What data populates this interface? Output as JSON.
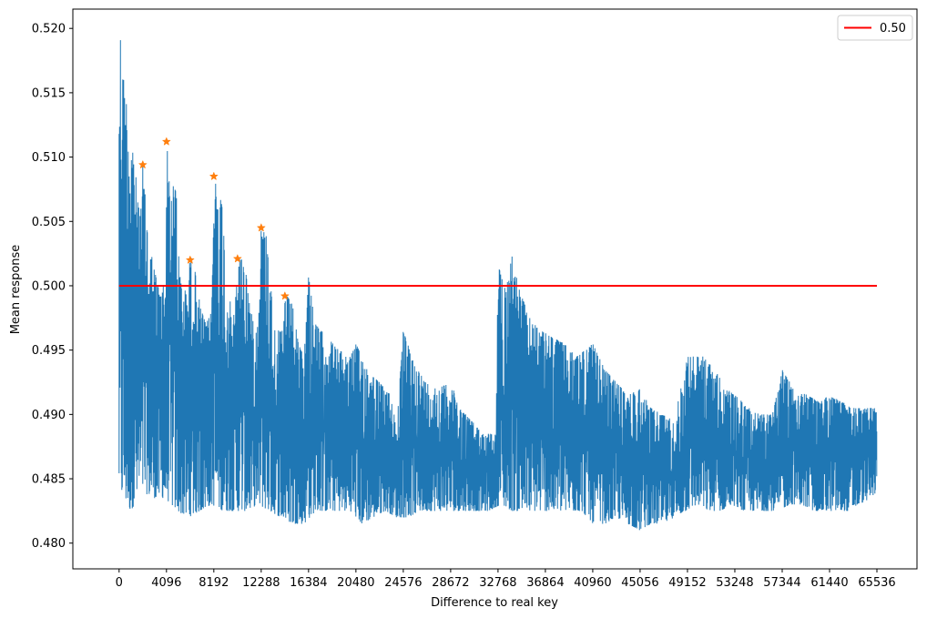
{
  "chart_data": {
    "type": "line",
    "xlabel": "Difference to real key",
    "ylabel": "Mean response",
    "xlim": [
      -4000,
      69000
    ],
    "ylim": [
      0.478,
      0.5215
    ],
    "x_ticks": [
      0,
      4096,
      8192,
      12288,
      16384,
      20480,
      24576,
      28672,
      32768,
      36864,
      40960,
      45056,
      49152,
      53248,
      57344,
      61440,
      65536
    ],
    "y_ticks": [
      0.48,
      0.485,
      0.49,
      0.495,
      0.5,
      0.505,
      0.51,
      0.515,
      0.52
    ],
    "grid": false,
    "legend_position": "top-right",
    "series": [
      {
        "name": "",
        "style": "noisy-line",
        "color": "#1f77b4",
        "envelope_upper": [
          [
            0,
            0.5195
          ],
          [
            120,
            0.5195
          ],
          [
            250,
            0.517
          ],
          [
            500,
            0.5155
          ],
          [
            800,
            0.513
          ],
          [
            1200,
            0.511
          ],
          [
            1700,
            0.506
          ],
          [
            2000,
            0.5065
          ],
          [
            2048,
            0.5095
          ],
          [
            2500,
            0.504
          ],
          [
            3000,
            0.5015
          ],
          [
            3500,
            0.4995
          ],
          [
            4000,
            0.5005
          ],
          [
            4096,
            0.5115
          ],
          [
            4400,
            0.5075
          ],
          [
            5000,
            0.508
          ],
          [
            5200,
            0.501
          ],
          [
            5600,
            0.4995
          ],
          [
            6000,
            0.5
          ],
          [
            6144,
            0.5025
          ],
          [
            6600,
            0.501
          ],
          [
            7000,
            0.4985
          ],
          [
            7500,
            0.497
          ],
          [
            8000,
            0.498
          ],
          [
            8192,
            0.5085
          ],
          [
            8600,
            0.5075
          ],
          [
            9000,
            0.506
          ],
          [
            9200,
            0.5
          ],
          [
            9700,
            0.4985
          ],
          [
            10000,
            0.4975
          ],
          [
            10240,
            0.5025
          ],
          [
            10700,
            0.502
          ],
          [
            11000,
            0.501
          ],
          [
            11500,
            0.4975
          ],
          [
            12000,
            0.497
          ],
          [
            12288,
            0.5045
          ],
          [
            12700,
            0.504
          ],
          [
            13000,
            0.503
          ],
          [
            13300,
            0.497
          ],
          [
            13800,
            0.4965
          ],
          [
            14200,
            0.4965
          ],
          [
            14336,
            0.4995
          ],
          [
            15000,
            0.4985
          ],
          [
            15500,
            0.4955
          ],
          [
            16000,
            0.4945
          ],
          [
            16384,
            0.501
          ],
          [
            17000,
            0.497
          ],
          [
            18000,
            0.496
          ],
          [
            19000,
            0.495
          ],
          [
            20000,
            0.4945
          ],
          [
            20480,
            0.4955
          ],
          [
            21500,
            0.4935
          ],
          [
            22500,
            0.4925
          ],
          [
            23500,
            0.4915
          ],
          [
            24000,
            0.489
          ],
          [
            24576,
            0.4965
          ],
          [
            25500,
            0.494
          ],
          [
            26500,
            0.4925
          ],
          [
            27500,
            0.492
          ],
          [
            28672,
            0.4925
          ],
          [
            29500,
            0.4905
          ],
          [
            30500,
            0.4895
          ],
          [
            31500,
            0.4885
          ],
          [
            32600,
            0.4885
          ],
          [
            32768,
            0.5015
          ],
          [
            33500,
            0.5
          ],
          [
            34000,
            0.5025
          ],
          [
            34500,
            0.5
          ],
          [
            35500,
            0.4975
          ],
          [
            36500,
            0.4965
          ],
          [
            37500,
            0.496
          ],
          [
            38500,
            0.4955
          ],
          [
            39500,
            0.4945
          ],
          [
            40960,
            0.4955
          ],
          [
            42000,
            0.4935
          ],
          [
            43000,
            0.4925
          ],
          [
            44000,
            0.4915
          ],
          [
            45056,
            0.492
          ],
          [
            46000,
            0.4905
          ],
          [
            47000,
            0.49
          ],
          [
            48000,
            0.4895
          ],
          [
            49152,
            0.4945
          ],
          [
            50500,
            0.4945
          ],
          [
            51500,
            0.4935
          ],
          [
            52500,
            0.492
          ],
          [
            53248,
            0.4915
          ],
          [
            54500,
            0.4905
          ],
          [
            55500,
            0.49
          ],
          [
            56500,
            0.49
          ],
          [
            57344,
            0.4935
          ],
          [
            58500,
            0.492
          ],
          [
            59500,
            0.4915
          ],
          [
            60500,
            0.491
          ],
          [
            61440,
            0.4915
          ],
          [
            62500,
            0.491
          ],
          [
            63500,
            0.4905
          ],
          [
            64500,
            0.4905
          ],
          [
            65536,
            0.4905
          ]
        ],
        "envelope_lower": [
          [
            0,
            0.484
          ],
          [
            1000,
            0.4825
          ],
          [
            2000,
            0.484
          ],
          [
            3000,
            0.4835
          ],
          [
            4000,
            0.4835
          ],
          [
            5000,
            0.4825
          ],
          [
            6000,
            0.482
          ],
          [
            7000,
            0.4825
          ],
          [
            8000,
            0.483
          ],
          [
            9000,
            0.4825
          ],
          [
            10000,
            0.4825
          ],
          [
            11000,
            0.4825
          ],
          [
            12000,
            0.483
          ],
          [
            13000,
            0.4825
          ],
          [
            14000,
            0.482
          ],
          [
            15000,
            0.4815
          ],
          [
            16000,
            0.4815
          ],
          [
            17000,
            0.4825
          ],
          [
            18000,
            0.4825
          ],
          [
            19000,
            0.4825
          ],
          [
            20000,
            0.4825
          ],
          [
            21000,
            0.4815
          ],
          [
            22000,
            0.482
          ],
          [
            23000,
            0.4825
          ],
          [
            24000,
            0.482
          ],
          [
            25000,
            0.482
          ],
          [
            26000,
            0.4825
          ],
          [
            27000,
            0.4825
          ],
          [
            28000,
            0.4825
          ],
          [
            29000,
            0.4825
          ],
          [
            30000,
            0.4825
          ],
          [
            31000,
            0.4825
          ],
          [
            32000,
            0.4825
          ],
          [
            33000,
            0.483
          ],
          [
            34000,
            0.4825
          ],
          [
            35000,
            0.4825
          ],
          [
            36000,
            0.4825
          ],
          [
            37000,
            0.4825
          ],
          [
            38000,
            0.4825
          ],
          [
            39000,
            0.4825
          ],
          [
            40000,
            0.4825
          ],
          [
            41000,
            0.4815
          ],
          [
            42000,
            0.4815
          ],
          [
            43000,
            0.482
          ],
          [
            44000,
            0.4815
          ],
          [
            45000,
            0.481
          ],
          [
            46000,
            0.4815
          ],
          [
            47000,
            0.4815
          ],
          [
            48000,
            0.482
          ],
          [
            49000,
            0.4825
          ],
          [
            50000,
            0.483
          ],
          [
            51000,
            0.4825
          ],
          [
            52000,
            0.4825
          ],
          [
            53000,
            0.483
          ],
          [
            54000,
            0.4825
          ],
          [
            55000,
            0.4825
          ],
          [
            56000,
            0.4825
          ],
          [
            57000,
            0.4825
          ],
          [
            58000,
            0.483
          ],
          [
            59000,
            0.483
          ],
          [
            60000,
            0.4825
          ],
          [
            61000,
            0.4825
          ],
          [
            62000,
            0.4825
          ],
          [
            63000,
            0.4825
          ],
          [
            64000,
            0.483
          ],
          [
            65000,
            0.4835
          ],
          [
            65536,
            0.484
          ]
        ]
      },
      {
        "name": "0.50",
        "style": "line",
        "color": "#ff0000",
        "x": [
          0,
          65536
        ],
        "y": [
          0.5,
          0.5
        ]
      },
      {
        "name": "",
        "style": "star-markers",
        "color": "#ff7f0e",
        "x": [
          2048,
          4096,
          6144,
          8192,
          10240,
          12288,
          14336
        ],
        "y": [
          0.5094,
          0.5112,
          0.502,
          0.5085,
          0.5021,
          0.5045,
          0.4992
        ]
      }
    ]
  }
}
